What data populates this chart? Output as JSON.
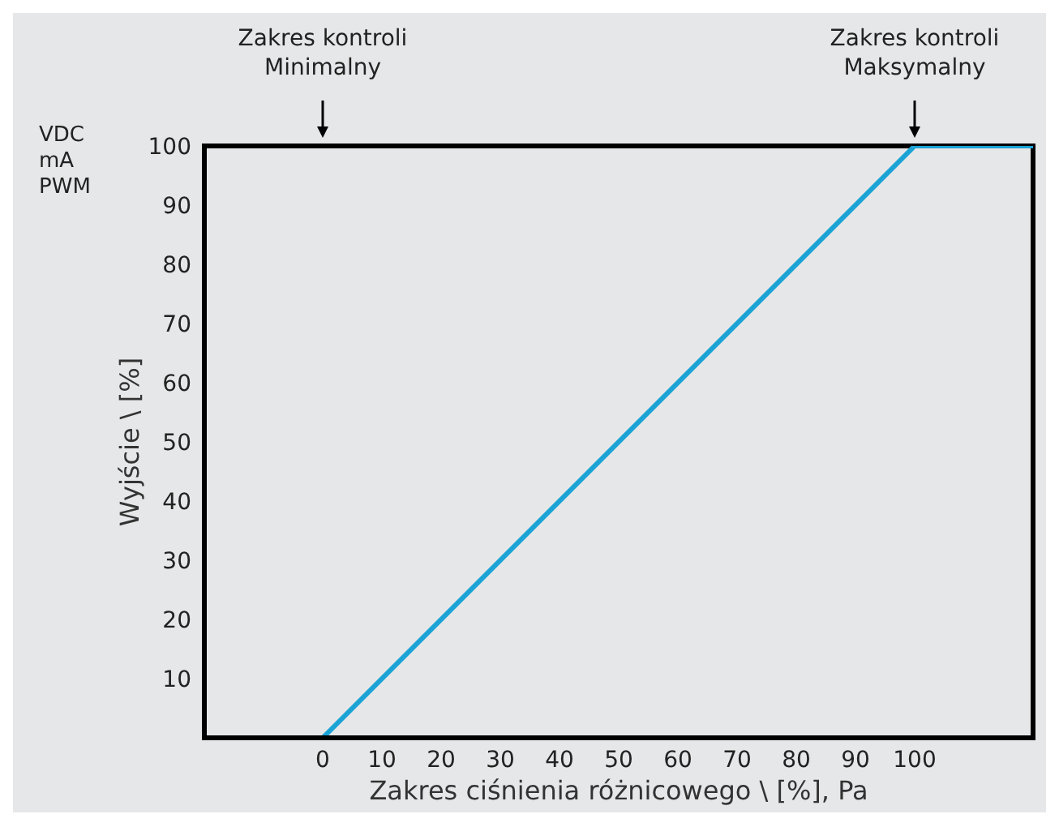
{
  "chart_data": {
    "type": "line",
    "xlabel": "Zakres ciśnienia różnicowego \\ [%], Pa",
    "ylabel": "Wyjście \\ [%]",
    "x": [
      -20,
      0,
      100,
      120
    ],
    "series": [
      {
        "color": "#1ba3d6",
        "values": [
          0,
          0,
          100,
          100
        ]
      }
    ],
    "xlim": [
      -20,
      120
    ],
    "xticks": [
      0,
      10,
      20,
      30,
      40,
      50,
      60,
      70,
      80,
      90,
      100
    ],
    "ylim": [
      0,
      100
    ],
    "yticks": [
      10,
      20,
      30,
      40,
      50,
      60,
      70,
      80,
      90,
      100
    ],
    "grid": false,
    "legend": false,
    "marker": "none",
    "line_style": "solid",
    "annotations": [
      "Zakres kontroli\nMinimalny",
      "Zakres kontroli\nMaksymalny",
      "VDC\nmA\nPWM"
    ]
  }
}
